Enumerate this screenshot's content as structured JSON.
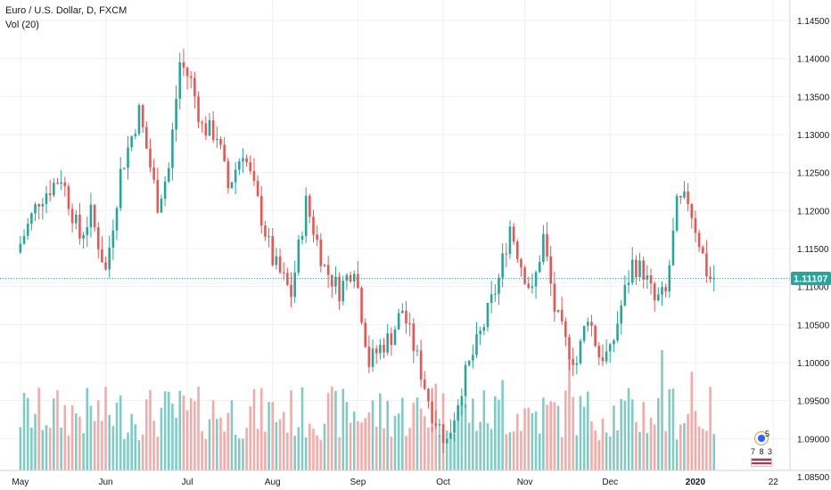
{
  "legend": {
    "title": "Euro / U.S. Dollar, D, FXCM",
    "volume_label": "Vol (20)"
  },
  "last_price_label": "1.11107",
  "events": {
    "count": "5",
    "numbers": "7 8 3"
  },
  "colors": {
    "up": "#26a69a",
    "down": "#ef5350",
    "volume_up": "#80cbc4",
    "volume_down": "#f7a9a7",
    "grid": "#eef0f3",
    "last_price": "#26a69a"
  },
  "chart_data": {
    "type": "candlestick",
    "title": "Euro / U.S. Dollar, D, FXCM",
    "x_tick_labels": [
      "May",
      "Jun",
      "Jul",
      "Aug",
      "Sep",
      "Oct",
      "Nov",
      "Dec",
      "2020",
      "22"
    ],
    "x_tick_days": [
      0,
      23,
      45,
      68,
      91,
      114,
      136,
      159,
      182,
      203
    ],
    "y_tick_labels": [
      "1.08500",
      "1.09000",
      "1.09500",
      "1.10000",
      "1.10500",
      "1.11000",
      "1.11500",
      "1.12000",
      "1.12500",
      "1.13000",
      "1.13500",
      "1.14000",
      "1.14500"
    ],
    "ylim": [
      1.083,
      1.1475
    ],
    "xlim_days": [
      -5.5,
      207.5
    ],
    "last_price": 1.11107,
    "grid": true,
    "legend_position": "top-left",
    "volume_indicator": "Vol (20)",
    "anchor_points": [
      [
        0,
        1.1145
      ],
      [
        6,
        1.1215
      ],
      [
        12,
        1.1245
      ],
      [
        17,
        1.1165
      ],
      [
        20,
        1.1195
      ],
      [
        24,
        1.112
      ],
      [
        28,
        1.125
      ],
      [
        33,
        1.133
      ],
      [
        38,
        1.121
      ],
      [
        41,
        1.1255
      ],
      [
        44,
        1.1395
      ],
      [
        47,
        1.137
      ],
      [
        50,
        1.131
      ],
      [
        54,
        1.13
      ],
      [
        57,
        1.123
      ],
      [
        61,
        1.128
      ],
      [
        65,
        1.121
      ],
      [
        69,
        1.1135
      ],
      [
        74,
        1.109
      ],
      [
        78,
        1.121
      ],
      [
        83,
        1.1125
      ],
      [
        87,
        1.1095
      ],
      [
        91,
        1.113
      ],
      [
        95,
        1.1
      ],
      [
        98,
        1.102
      ],
      [
        101,
        1.1035
      ],
      [
        104,
        1.107
      ],
      [
        108,
        1.1005
      ],
      [
        112,
        1.0935
      ],
      [
        116,
        1.0895
      ],
      [
        120,
        1.097
      ],
      [
        126,
        1.105
      ],
      [
        130,
        1.111
      ],
      [
        133,
        1.118
      ],
      [
        136,
        1.113
      ],
      [
        139,
        1.109
      ],
      [
        142,
        1.1165
      ],
      [
        145,
        1.107
      ],
      [
        148,
        1.1025
      ],
      [
        151,
        1.1
      ],
      [
        154,
        1.1065
      ],
      [
        157,
        1.101
      ],
      [
        160,
        1.101
      ],
      [
        163,
        1.1075
      ],
      [
        166,
        1.113
      ],
      [
        169,
        1.112
      ],
      [
        172,
        1.108
      ],
      [
        175,
        1.109
      ],
      [
        178,
        1.1205
      ],
      [
        181,
        1.1215
      ],
      [
        184,
        1.116
      ],
      [
        186,
        1.112
      ],
      [
        187,
        1.1111
      ]
    ],
    "volume_ylim": [
      0,
      1
    ]
  }
}
